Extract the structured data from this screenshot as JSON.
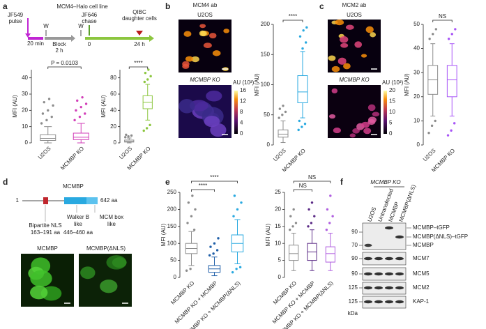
{
  "panel_labels": [
    "a",
    "b",
    "c",
    "d",
    "e",
    "f"
  ],
  "schematic": {
    "title": "MCM4–Halo cell line",
    "pulse": [
      "JF549",
      "pulse"
    ],
    "pulse_time": "20 min",
    "wash1": "W",
    "block": "Block",
    "block_time": "2 h",
    "wash2": "W",
    "chase": [
      "JF646",
      "chase"
    ],
    "t0": "0",
    "t24": "24 h",
    "readout": [
      "QIBC",
      "daughter cells"
    ]
  },
  "images": {
    "b": {
      "title": "MCM4 ab",
      "top": "U2OS",
      "bottom": "MCMBP KO"
    },
    "c": {
      "title": "MCM2 ab",
      "top": "U2OS",
      "bottom": "MCMBP KO"
    },
    "d": {
      "left": "MCMBP",
      "right": "MCMBP(ΔNLS)"
    }
  },
  "colorbars": {
    "b": {
      "title": "AU (10³)",
      "ticks": [
        0,
        4,
        8,
        12,
        16
      ]
    },
    "c": {
      "title": "AU (10³)",
      "ticks": [
        0,
        5,
        10,
        15,
        20
      ]
    }
  },
  "protein": {
    "name": "MCMBP",
    "start": "1",
    "end": "642 aa",
    "nls": [
      "Bipartite NLS",
      "163–191 aa"
    ],
    "walker": [
      "Walker B",
      "like",
      "446–460 aa"
    ],
    "mcm": [
      "MCM box",
      "like"
    ]
  },
  "blot": {
    "group": "MCMBP KO",
    "lanes": [
      "U2OS",
      "Untransfected",
      "MCMBP",
      "MCMBP(ΔNLS)"
    ],
    "markers": [
      "90",
      "70",
      "90",
      "90",
      "125",
      "125"
    ],
    "bands": [
      "MCMBP–tGFP",
      "MCMBP(ΔNLS)–tGFP",
      "MCMBP",
      "MCM7",
      "MCM5",
      "MCM2",
      "KAP-1"
    ],
    "unit": "kDa"
  },
  "chart_data": [
    {
      "type": "box",
      "ylabel": "MFI (AU)",
      "annotations": [
        "P = 0.0103"
      ],
      "ylim": [
        0,
        45
      ],
      "yticks": [
        0,
        10,
        20,
        30,
        40
      ],
      "groups": [
        {
          "name": "U2OS",
          "color": "#8c8c8c",
          "whisker_low": 0,
          "q1": 1.5,
          "median": 2.8,
          "q3": 5,
          "whisker_high": 10,
          "outliers": [
            12,
            14,
            16,
            18,
            20,
            23,
            25,
            27
          ]
        },
        {
          "name": "MCMBP KO",
          "color": "#d23fb8",
          "whisker_low": 0,
          "q1": 2,
          "median": 3.5,
          "q3": 6,
          "whisker_high": 12,
          "outliers": [
            14,
            16,
            18,
            20,
            22,
            24,
            26,
            28
          ]
        }
      ]
    },
    {
      "type": "box",
      "ylabel": "MFI (AU)",
      "annotations": [
        "****"
      ],
      "ylim": [
        0,
        90
      ],
      "yticks": [
        0,
        20,
        40,
        60,
        80
      ],
      "groups": [
        {
          "name": "U2OS",
          "color": "#8c8c8c",
          "whisker_low": 0,
          "q1": 1,
          "median": 2,
          "q3": 3.5,
          "whisker_high": 6,
          "outliers": [
            7,
            8,
            9,
            10
          ]
        },
        {
          "name": "MCMBP KO",
          "color": "#8cc63f",
          "whisker_low": 28,
          "q1": 42,
          "median": 50,
          "q3": 58,
          "whisker_high": 72,
          "outliers": [
            15,
            18,
            22,
            75,
            78,
            82,
            86,
            90
          ]
        }
      ]
    },
    {
      "type": "box",
      "ylabel": "MFI (AU)",
      "annotations": [
        "****"
      ],
      "ylim": [
        0,
        200
      ],
      "yticks": [
        0,
        50,
        100,
        150,
        200
      ],
      "groups": [
        {
          "name": "U2OS",
          "color": "#8c8c8c",
          "whisker_low": 4,
          "q1": 13,
          "median": 18,
          "q3": 25,
          "whisker_high": 40,
          "outliers": [
            45,
            50,
            55,
            60,
            65
          ]
        },
        {
          "name": "MCMBP KO",
          "color": "#29a9e0",
          "whisker_low": 45,
          "q1": 70,
          "median": 88,
          "q3": 115,
          "whisker_high": 155,
          "outliers": [
            25,
            30,
            35,
            40,
            160,
            170,
            180,
            190,
            195
          ]
        }
      ]
    },
    {
      "type": "box",
      "ylabel": "MFI (AU)",
      "annotations": [
        "NS"
      ],
      "ylim": [
        0,
        50
      ],
      "yticks": [
        0,
        10,
        20,
        30,
        40,
        50
      ],
      "groups": [
        {
          "name": "U2OS",
          "color": "#8c8c8c",
          "whisker_low": 12,
          "q1": 21,
          "median": 27,
          "q3": 33,
          "whisker_high": 42,
          "outliers": [
            5,
            8,
            10,
            44,
            46,
            48
          ]
        },
        {
          "name": "MCMBP KO",
          "color": "#a855f7",
          "whisker_low": 12,
          "q1": 20,
          "median": 27,
          "q3": 33,
          "whisker_high": 42,
          "outliers": [
            4,
            6,
            9,
            44,
            46,
            48
          ]
        }
      ]
    },
    {
      "type": "box",
      "ylabel": "MFI (AU)",
      "annotations": [
        "****",
        "****"
      ],
      "ylim": [
        0,
        250
      ],
      "yticks": [
        0,
        50,
        100,
        150,
        200,
        250
      ],
      "groups": [
        {
          "name": "MCMBP KO",
          "color": "#8c8c8c",
          "whisker_low": 35,
          "q1": 70,
          "median": 85,
          "q3": 100,
          "whisker_high": 135,
          "outliers": [
            20,
            25,
            140,
            160,
            180,
            200,
            220,
            240
          ]
        },
        {
          "name": "MCMBP KO + MCMBP",
          "color": "#1f5fa8",
          "whisker_low": 5,
          "q1": 15,
          "median": 25,
          "q3": 35,
          "whisker_high": 60,
          "outliers": [
            65,
            70,
            80,
            90,
            100,
            115
          ]
        },
        {
          "name": "MCMBP KO + MCMBP(ΔNLS)",
          "color": "#29a9e0",
          "whisker_low": 40,
          "q1": 75,
          "median": 100,
          "q3": 125,
          "whisker_high": 170,
          "outliers": [
            15,
            25,
            30,
            180,
            200,
            220,
            240
          ]
        }
      ]
    },
    {
      "type": "box",
      "ylabel": "MFI (AU)",
      "annotations": [
        "NS",
        "NS"
      ],
      "ylim": [
        0,
        25
      ],
      "yticks": [
        0,
        5,
        10,
        15,
        20,
        25
      ],
      "groups": [
        {
          "name": "MCMBP KO",
          "color": "#8c8c8c",
          "whisker_low": 2,
          "q1": 5,
          "median": 7,
          "q3": 9.5,
          "whisker_high": 13,
          "outliers": [
            14,
            15,
            16,
            18,
            20
          ]
        },
        {
          "name": "MCMBP KO + MCMBP",
          "color": "#5b2a86",
          "whisker_low": 2,
          "q1": 5,
          "median": 7.5,
          "q3": 10,
          "whisker_high": 14,
          "outliers": [
            15,
            16,
            18,
            20,
            22
          ]
        },
        {
          "name": "MCMBP KO + MCMBP(ΔNLS)",
          "color": "#b05ee0",
          "whisker_low": 2,
          "q1": 4.5,
          "median": 7,
          "q3": 9,
          "whisker_high": 13,
          "outliers": [
            14,
            16,
            18,
            20,
            24
          ]
        }
      ]
    }
  ]
}
